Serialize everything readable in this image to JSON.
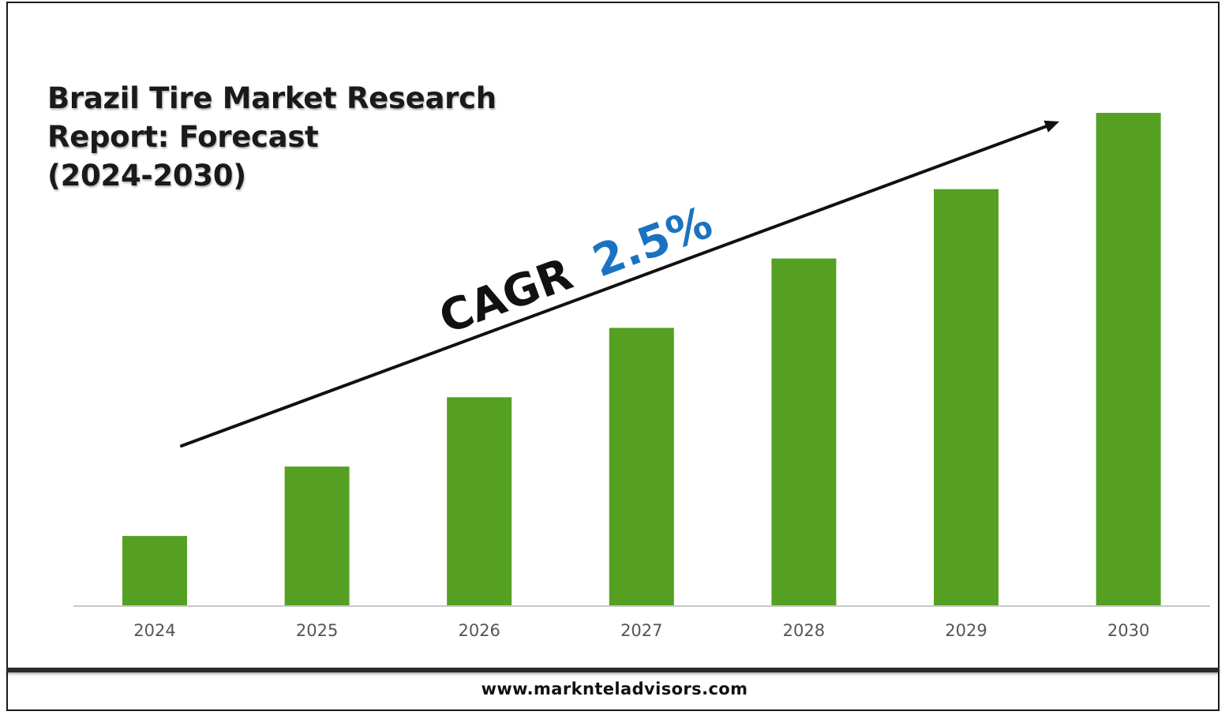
{
  "title_lines": [
    "Brazil Tire Market Research",
    "Report: Forecast",
    "(2024-2030)"
  ],
  "footer": "www.marknteladvisors.com",
  "annotation": {
    "prefix": "CAGR",
    "value": "2.5%",
    "prefix_color": "#111111",
    "value_color": "#1a73c0"
  },
  "colors": {
    "bar": "#55a022",
    "axis": "#c8c8c8",
    "arrow": "#111111"
  },
  "chart_data": {
    "type": "bar",
    "categories": [
      "2024",
      "2025",
      "2026",
      "2027",
      "2028",
      "2029",
      "2030"
    ],
    "values": [
      1.0,
      2.0,
      3.0,
      4.0,
      5.0,
      6.0,
      7.1
    ],
    "ylim": [
      0,
      7.1
    ],
    "grid": false,
    "legend": "none",
    "y_axis_labels": false,
    "note": ""
  }
}
